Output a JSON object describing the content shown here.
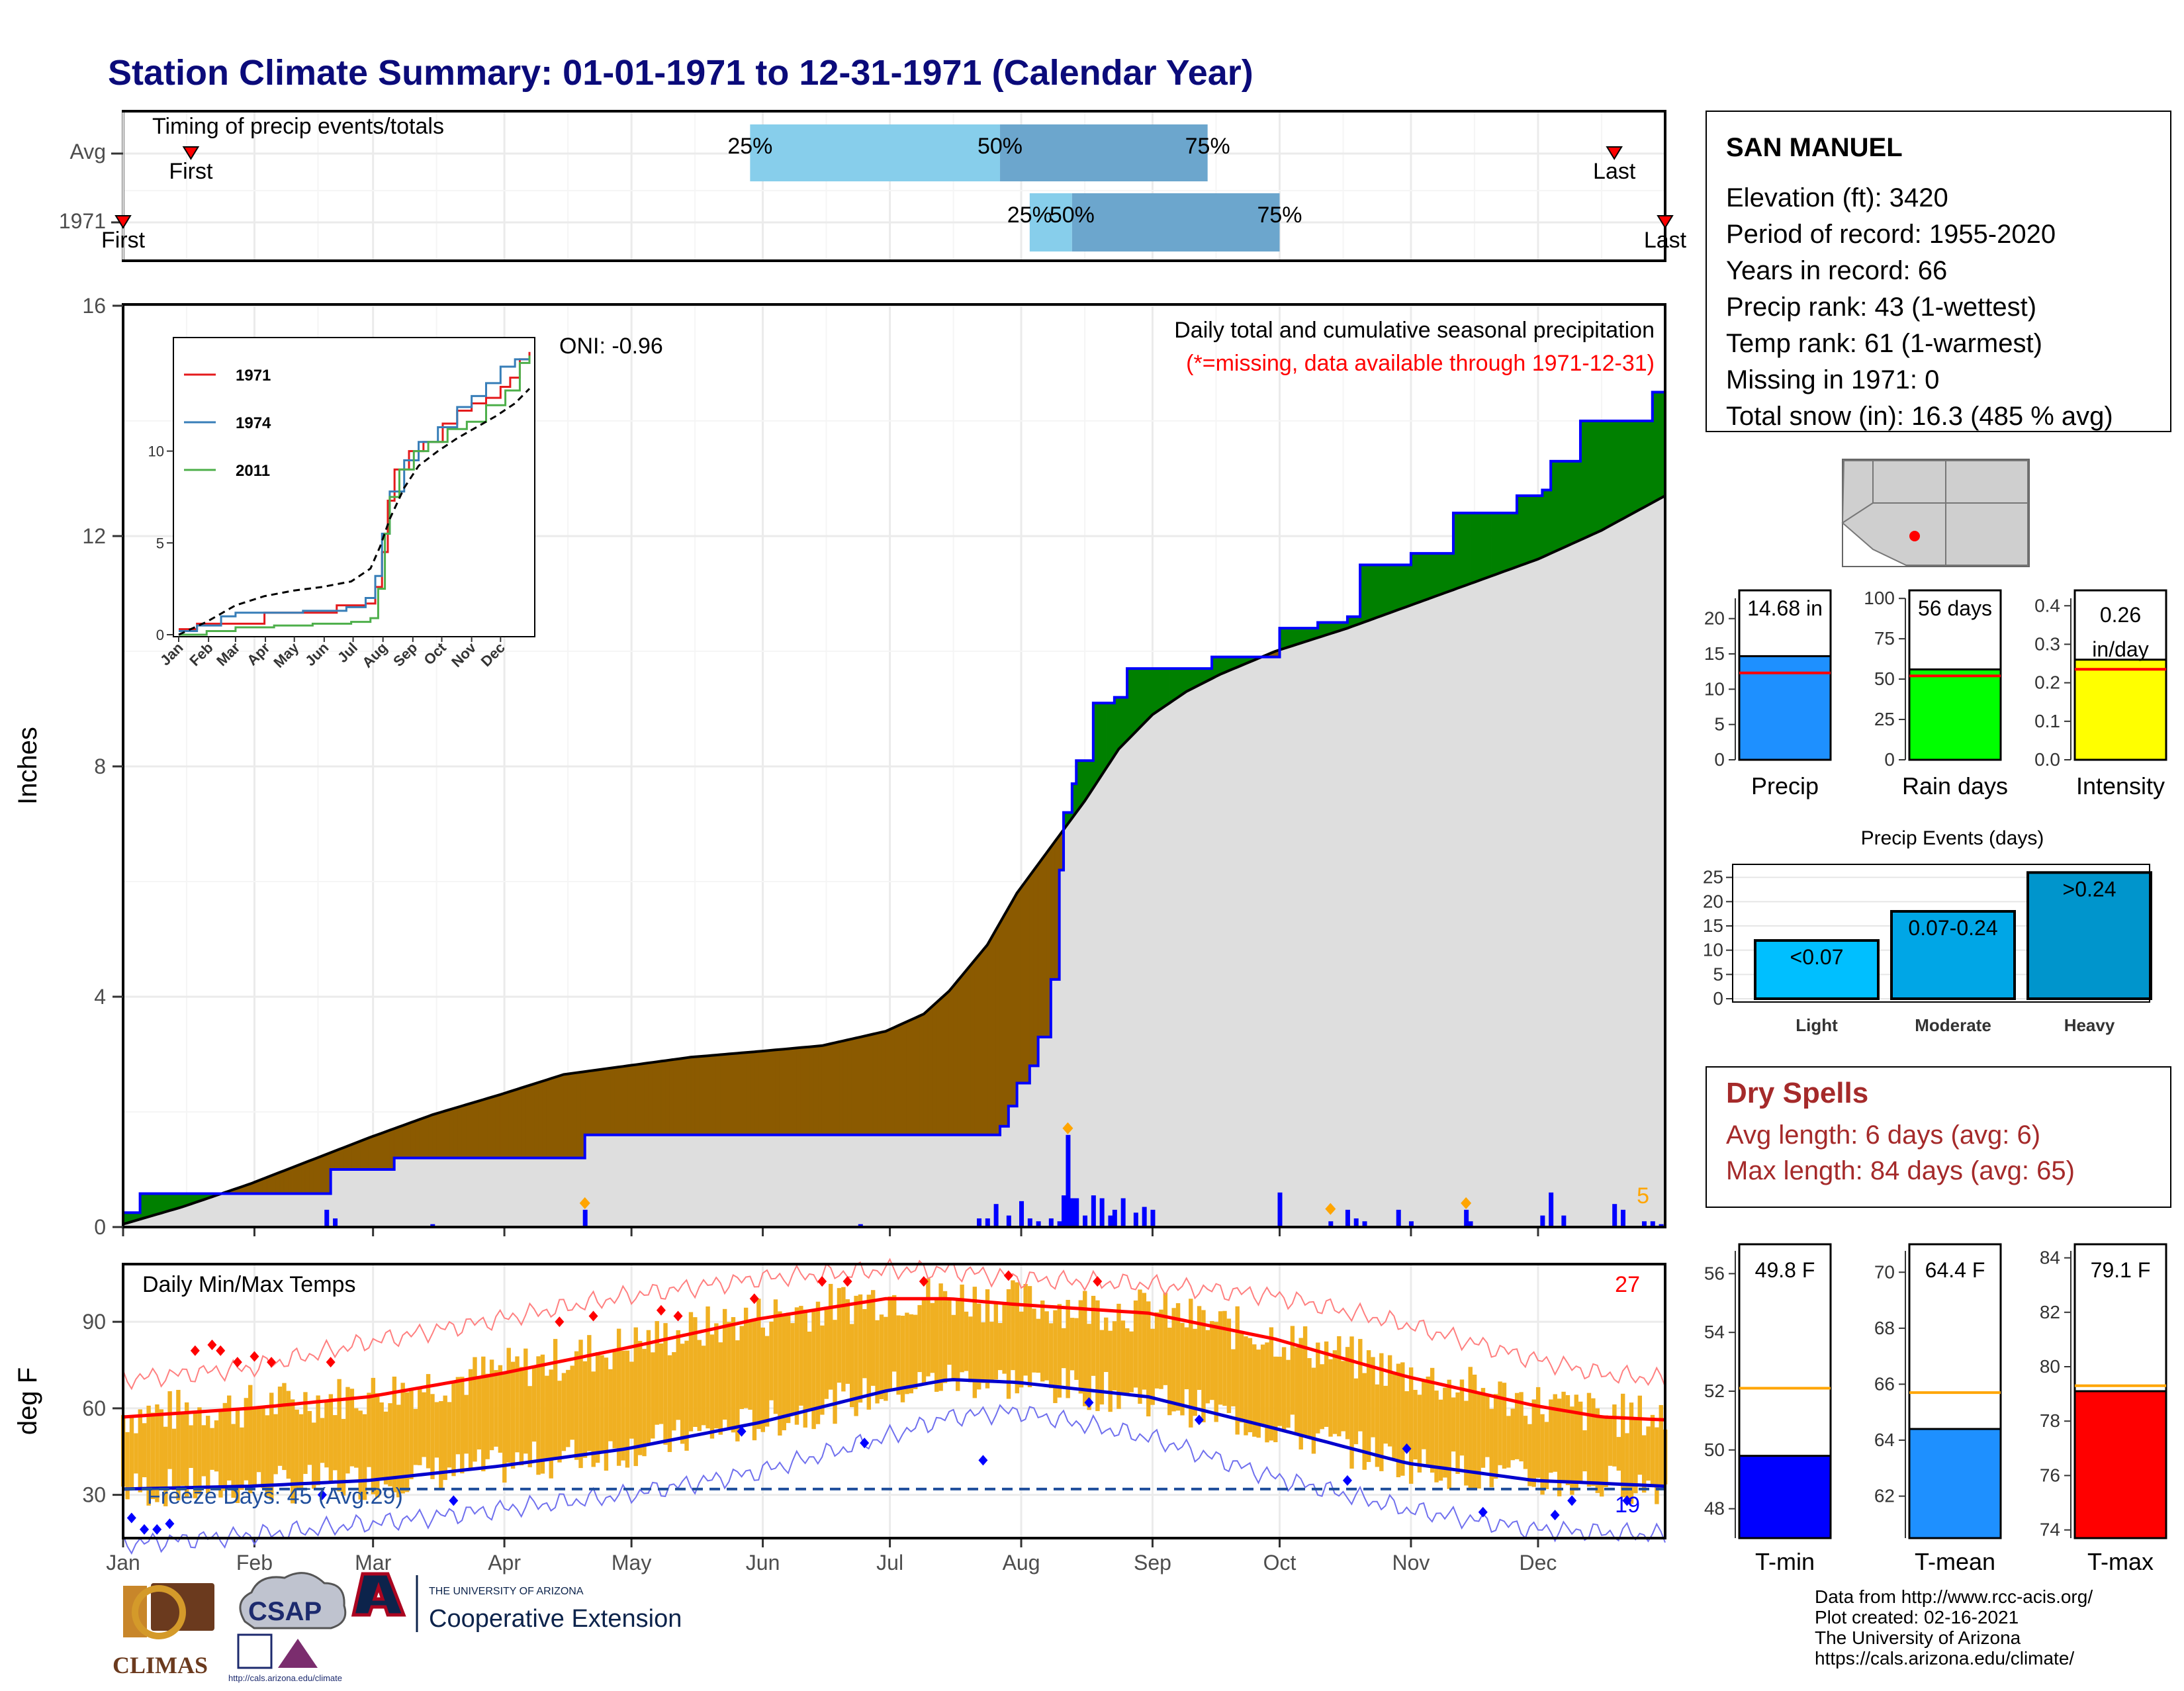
{
  "title": "Station Climate Summary: 01-01-1971 to 12-31-1971 (Calendar Year)",
  "months": [
    "Jan",
    "Feb",
    "Mar",
    "Apr",
    "May",
    "Jun",
    "Jul",
    "Aug",
    "Sep",
    "Oct",
    "Nov",
    "Dec"
  ],
  "timing": {
    "label": "Timing of precip events/totals",
    "rows": [
      {
        "name": "Avg",
        "first_label": "First",
        "last_label": "Last",
        "first_doy": 17,
        "last_doy": 353,
        "p25_label": "25%",
        "p50_label": "50%",
        "p75_label": "75%",
        "p25_doy": 149,
        "p50_doy": 208,
        "p75_doy": 257
      },
      {
        "name": "1971",
        "first_label": "First",
        "last_label": "Last",
        "first_doy": 1,
        "last_doy": 365,
        "p25_label": "25%",
        "p50_label": "50%",
        "p75_label": "75%",
        "p25_doy": 215,
        "p50_doy": 225,
        "p75_doy": 274
      }
    ]
  },
  "precip_panel": {
    "ylabel": "Inches",
    "y_ticks": [
      "0",
      "4",
      "8",
      "12",
      "16"
    ],
    "ylim": [
      0,
      16
    ],
    "header_line1": "Daily total and cumulative seasonal precipitation",
    "header_line2": "(*=missing, data available through 1971-12-31)",
    "oni": "ONI: -0.96",
    "count_label": "5"
  },
  "inset": {
    "y_ticks": [
      "0",
      "5",
      "10"
    ],
    "legend": [
      {
        "name": "1971",
        "color": "#e41a1c"
      },
      {
        "name": "1974",
        "color": "#377eb8"
      },
      {
        "name": "2011",
        "color": "#4daf4a"
      }
    ]
  },
  "temp_panel": {
    "ylabel": "deg F",
    "label": "Daily Min/Max Temps",
    "y_ticks": [
      "30",
      "60",
      "90"
    ],
    "ylim": [
      15,
      110
    ],
    "freeze_text": "Freeze Days: 45 (Avg:29)",
    "hot_count": "27",
    "cold_count": "19"
  },
  "station": {
    "name": "SAN MANUEL",
    "lines": [
      "Elevation (ft): 3420",
      "Period of record: 1955-2020",
      "Years in record: 66",
      "Precip rank: 43 (1-wettest)",
      "Temp rank: 61 (1-warmest)",
      "Missing in 1971: 0",
      "Total snow (in): 16.3 (485 % avg)"
    ]
  },
  "summary_bars": [
    {
      "label": "Precip",
      "value_text": "14.68 in",
      "value": 14.68,
      "avg": 12.3,
      "ymax": 24,
      "ticks": [
        "0",
        "5",
        "10",
        "15",
        "20"
      ],
      "color": "#1e90ff"
    },
    {
      "label": "Rain days",
      "value_text": "56 days",
      "value": 56,
      "avg": 52,
      "ymax": 105,
      "ticks": [
        "0",
        "25",
        "50",
        "75",
        "100"
      ],
      "color": "#00ff00"
    },
    {
      "label": "Intensity",
      "value_text": "0.26 in/day",
      "value": 0.26,
      "avg": 0.235,
      "ymax": 0.44,
      "ticks": [
        "0.0",
        "0.1",
        "0.2",
        "0.3",
        "0.4"
      ],
      "color": "#ffff00"
    }
  ],
  "precip_events": {
    "title": "Precip Events (days)",
    "ticks": [
      "0",
      "5",
      "10",
      "15",
      "20",
      "25"
    ],
    "bars": [
      {
        "category": "Light",
        "label": "<0.07",
        "value": 12,
        "color": "#00bfff"
      },
      {
        "category": "Moderate",
        "label": "0.07-0.24",
        "value": 18,
        "color": "#00a6e6"
      },
      {
        "category": "Heavy",
        "label": ">0.24",
        "value": 26,
        "color": "#0095cc"
      }
    ]
  },
  "dry_spells": {
    "title": "Dry Spells",
    "avg_line": "Avg length: 6 days (avg: 6)",
    "max_line": "Max length: 84 days (avg: 65)"
  },
  "temp_bars": [
    {
      "label": "T-min",
      "value_text": "49.8 F",
      "value": 49.8,
      "avg": 52.1,
      "ymin": 47,
      "ymax": 57,
      "ticks": [
        "48",
        "50",
        "52",
        "54",
        "56"
      ],
      "color": "#0000ff"
    },
    {
      "label": "T-mean",
      "value_text": "64.4 F",
      "value": 64.4,
      "avg": 65.7,
      "ymin": 60.5,
      "ymax": 71,
      "ticks": [
        "62",
        "64",
        "66",
        "68",
        "70"
      ],
      "color": "#1e90ff"
    },
    {
      "label": "T-max",
      "value_text": "79.1 F",
      "value": 79.1,
      "avg": 79.3,
      "ymin": 73.7,
      "ymax": 84.5,
      "ticks": [
        "74",
        "76",
        "78",
        "80",
        "82",
        "84"
      ],
      "color": "#ff0000"
    }
  ],
  "footer_lines": [
    "Data from http://www.rcc-acis.org/",
    "Plot created: 02-16-2021",
    "The University of Arizona",
    "https://cals.arizona.edu/climate/"
  ],
  "logos": {
    "climas": "CLIMAS",
    "csap": "CSAP",
    "csap_url": "http://cals.arizona.edu/climate",
    "ua_line1": "THE UNIVERSITY OF ARIZONA",
    "ua_line2": "Cooperative Extension"
  },
  "chart_data": [
    {
      "type": "area",
      "title": "Daily total and cumulative seasonal precipitation",
      "ylabel": "Inches",
      "ylim": [
        0,
        16
      ],
      "x_unit": "day of year",
      "series": [
        {
          "name": "1971 cumulative",
          "x": [
            1,
            5,
            15,
            31,
            49,
            50,
            65,
            90,
            105,
            110,
            130,
            160,
            190,
            208,
            210,
            212,
            215,
            217,
            220,
            222,
            223,
            225,
            226,
            230,
            235,
            238,
            242,
            250,
            258,
            268,
            273,
            274,
            283,
            290,
            293,
            300,
            305,
            315,
            330,
            336,
            338,
            345,
            350,
            362,
            365
          ],
          "y": [
            0.25,
            0.58,
            0.58,
            0.58,
            0.58,
            1.0,
            1.2,
            1.2,
            1.2,
            1.6,
            1.6,
            1.6,
            1.6,
            1.75,
            2.1,
            2.5,
            2.8,
            3.3,
            4.3,
            6.2,
            7.2,
            7.7,
            8.1,
            9.1,
            9.2,
            9.7,
            9.7,
            9.7,
            9.9,
            9.9,
            9.9,
            10.4,
            10.5,
            10.6,
            11.5,
            11.5,
            11.7,
            12.4,
            12.7,
            12.8,
            13.3,
            14.0,
            14.0,
            14.5,
            14.68
          ]
        },
        {
          "name": "Average cumulative",
          "x": [
            1,
            15,
            31,
            45,
            59,
            74,
            90,
            105,
            120,
            135,
            151,
            166,
            181,
            190,
            196,
            205,
            212,
            220,
            228,
            236,
            244,
            252,
            260,
            273,
            290,
            305,
            320,
            335,
            350,
            365
          ],
          "y": [
            0.05,
            0.35,
            0.75,
            1.15,
            1.55,
            1.95,
            2.3,
            2.65,
            2.8,
            2.95,
            3.05,
            3.15,
            3.4,
            3.7,
            4.1,
            4.9,
            5.8,
            6.6,
            7.4,
            8.3,
            8.9,
            9.3,
            9.6,
            10.0,
            10.4,
            10.8,
            11.2,
            11.6,
            12.1,
            12.7
          ]
        },
        {
          "name": "Daily precip",
          "x": [
            49,
            51,
            74,
            110,
            175,
            203,
            205,
            207,
            210,
            213,
            215,
            217,
            220,
            222,
            223,
            224,
            225,
            226,
            228,
            230,
            232,
            234,
            235,
            237,
            240,
            242,
            244,
            274,
            286,
            290,
            292,
            294,
            302,
            305,
            318,
            319,
            336,
            338,
            341,
            353,
            355,
            360,
            362,
            364
          ],
          "y": [
            0.3,
            0.15,
            0.05,
            0.3,
            0.05,
            0.15,
            0.15,
            0.4,
            0.2,
            0.45,
            0.15,
            0.1,
            0.15,
            0.1,
            0.55,
            1.6,
            0.5,
            0.5,
            0.2,
            0.55,
            0.5,
            0.2,
            0.3,
            0.5,
            0.25,
            0.35,
            0.3,
            0.6,
            0.1,
            0.3,
            0.15,
            0.1,
            0.3,
            0.1,
            0.3,
            0.1,
            0.2,
            0.6,
            0.2,
            0.4,
            0.3,
            0.1,
            0.1,
            0.05
          ]
        }
      ]
    },
    {
      "type": "line",
      "title": "",
      "xlabel": "",
      "ylabel": "",
      "ylim": [
        0,
        15.5
      ],
      "x_unit": "day of year",
      "series": [
        {
          "name": "1971",
          "x": [
            1,
            20,
            50,
            90,
            130,
            165,
            195,
            205,
            212,
            218,
            225,
            240,
            255,
            275,
            290,
            305,
            320,
            335,
            345,
            355,
            365
          ],
          "y": [
            0.3,
            0.6,
            0.6,
            1.2,
            1.2,
            1.6,
            1.7,
            2.6,
            4.5,
            7.3,
            9.0,
            10.0,
            10.5,
            11.5,
            12.2,
            12.6,
            12.9,
            13.5,
            14.0,
            15.0,
            15.4
          ]
        },
        {
          "name": "1974",
          "x": [
            1,
            20,
            45,
            60,
            90,
            130,
            175,
            195,
            205,
            212,
            220,
            235,
            250,
            270,
            290,
            305,
            320,
            335,
            350,
            365
          ],
          "y": [
            0.2,
            0.5,
            1.0,
            1.2,
            1.2,
            1.3,
            1.5,
            2.0,
            3.2,
            5.5,
            7.8,
            9.5,
            10.5,
            11.3,
            12.4,
            13.0,
            13.7,
            14.6,
            15.0,
            15.2
          ]
        },
        {
          "name": "2011",
          "x": [
            1,
            30,
            60,
            100,
            140,
            180,
            200,
            208,
            215,
            220,
            230,
            245,
            260,
            280,
            300,
            320,
            340,
            355,
            365
          ],
          "y": [
            0.0,
            0.2,
            0.4,
            0.5,
            0.6,
            0.7,
            0.9,
            2.5,
            5.5,
            7.5,
            9.0,
            10.0,
            10.5,
            11.2,
            11.6,
            12.5,
            13.3,
            14.8,
            15.2
          ]
        },
        {
          "name": "Average",
          "x": [
            1,
            30,
            60,
            90,
            120,
            150,
            180,
            200,
            210,
            220,
            235,
            250,
            270,
            290,
            310,
            330,
            350,
            365
          ],
          "y": [
            0.0,
            0.7,
            1.6,
            2.1,
            2.4,
            2.6,
            2.9,
            3.6,
            4.8,
            6.3,
            8.0,
            9.2,
            10.0,
            10.7,
            11.3,
            11.9,
            12.6,
            13.4
          ]
        }
      ]
    },
    {
      "type": "line",
      "title": "Daily Min/Max Temps",
      "ylabel": "deg F",
      "ylim": [
        15,
        110
      ],
      "x_unit": "day of year",
      "series": [
        {
          "name": "Avg max",
          "x": [
            1,
            31,
            59,
            90,
            120,
            151,
            181,
            196,
            212,
            243,
            273,
            304,
            334,
            350,
            365
          ],
          "y": [
            57,
            60,
            64,
            72,
            81,
            91,
            98,
            98,
            96,
            93,
            84,
            71,
            61,
            57,
            56
          ]
        },
        {
          "name": "Avg min",
          "x": [
            1,
            31,
            59,
            90,
            120,
            151,
            181,
            196,
            212,
            243,
            273,
            304,
            334,
            350,
            365
          ],
          "y": [
            32,
            33,
            35,
            40,
            46,
            55,
            66,
            70,
            69,
            64,
            53,
            41,
            35,
            34,
            33
          ]
        },
        {
          "name": "Record high",
          "x": [
            1,
            31,
            59,
            90,
            120,
            151,
            181,
            196,
            212,
            243,
            273,
            304,
            334,
            350,
            365
          ],
          "y": [
            70,
            74,
            83,
            91,
            99,
            105,
            108,
            108,
            105,
            103,
            99,
            89,
            77,
            72,
            70
          ]
        },
        {
          "name": "Record low",
          "x": [
            1,
            31,
            59,
            90,
            120,
            151,
            181,
            196,
            212,
            243,
            273,
            304,
            334,
            350,
            365
          ],
          "y": [
            13,
            16,
            20,
            25,
            30,
            38,
            50,
            57,
            59,
            50,
            36,
            25,
            18,
            17,
            16
          ]
        }
      ],
      "freeze_threshold": 32
    }
  ]
}
